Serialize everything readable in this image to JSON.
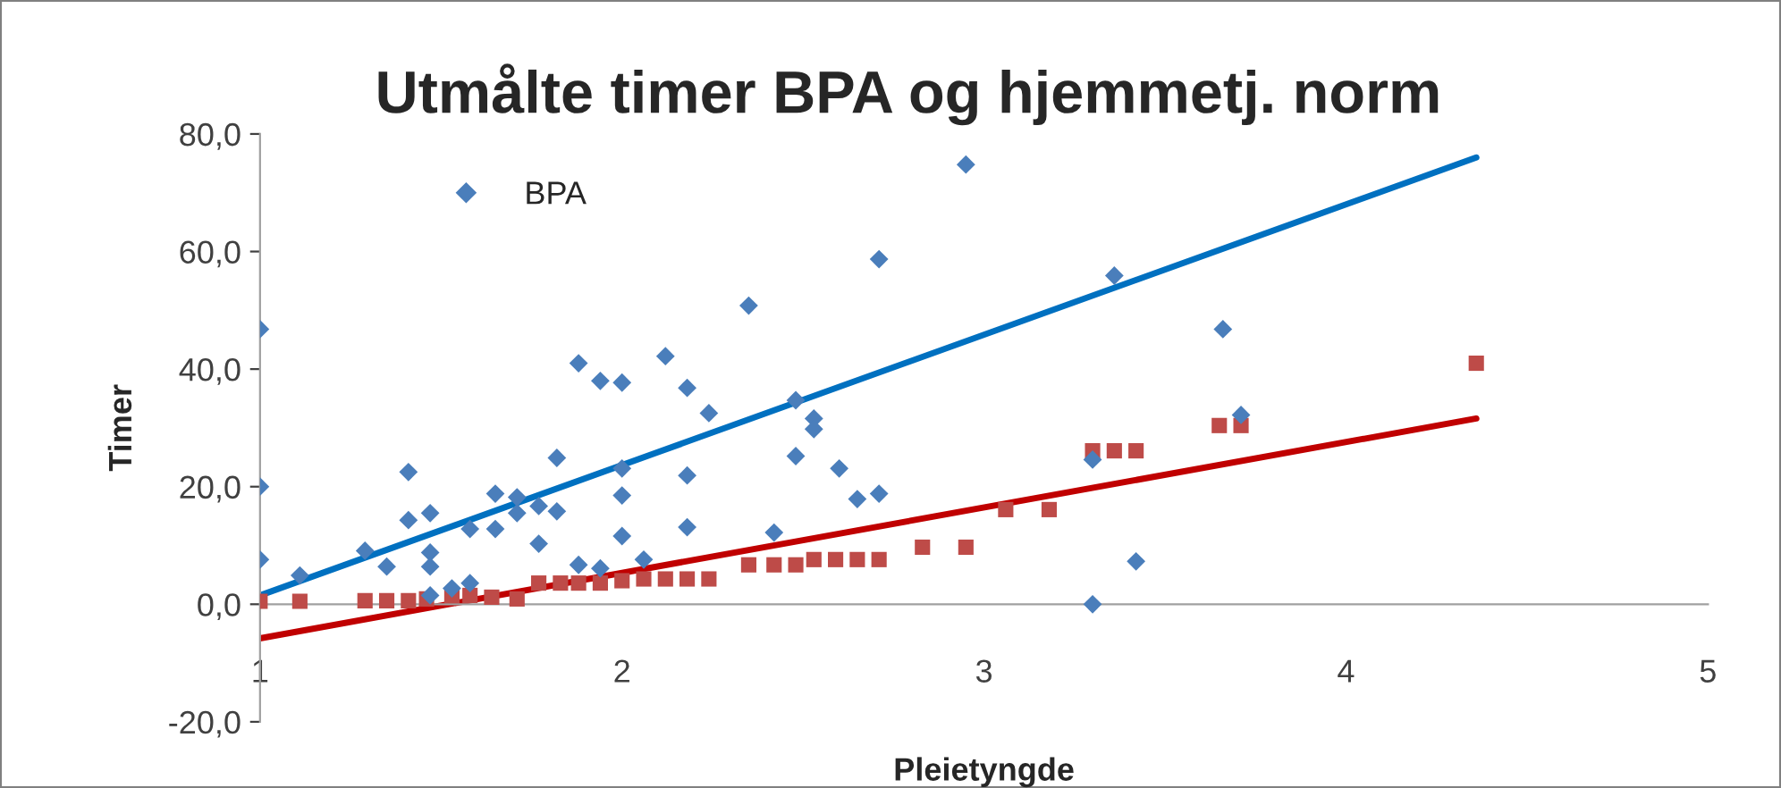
{
  "chart_data": {
    "type": "scatter",
    "title": "Utmålte timer BPA og hjemmetj. norm",
    "xlabel": "Pleietyngde",
    "ylabel": "Timer",
    "xlim": [
      1,
      5
    ],
    "xticks": [
      1,
      2,
      3,
      4,
      5
    ],
    "ylim": [
      -20,
      80
    ],
    "yticks": [
      {
        "value": -20,
        "label": "-20,0"
      },
      {
        "value": 0,
        "label": "0,0"
      },
      {
        "value": 20,
        "label": "20,0"
      },
      {
        "value": 40,
        "label": "40,0"
      },
      {
        "value": 60,
        "label": "60,0"
      },
      {
        "value": 80,
        "label": "80,0"
      }
    ],
    "grid": false,
    "legend": "top left",
    "series": [
      {
        "name": "BPA",
        "marker": "diamond",
        "color": "#4a7ebb",
        "x": [
          1.0,
          1.0,
          1.0,
          1.11,
          1.29,
          1.35,
          1.41,
          1.41,
          1.47,
          1.47,
          1.47,
          1.47,
          1.53,
          1.58,
          1.58,
          1.65,
          1.65,
          1.71,
          1.71,
          1.77,
          1.77,
          1.82,
          1.82,
          1.88,
          1.88,
          1.94,
          1.94,
          2.0,
          2.0,
          2.0,
          2.0,
          2.06,
          2.12,
          2.18,
          2.18,
          2.18,
          2.24,
          2.35,
          2.42,
          2.48,
          2.48,
          2.53,
          2.53,
          2.6,
          2.65,
          2.71,
          2.71,
          2.95,
          3.3,
          3.3,
          3.36,
          3.42,
          3.66,
          3.71
        ],
        "values": [
          46.8,
          20,
          7.6,
          4.9,
          9.1,
          6.4,
          22.5,
          14.3,
          15.5,
          8.8,
          6.4,
          1.5,
          2.7,
          12.8,
          3.6,
          18.8,
          12.8,
          18.2,
          15.5,
          16.7,
          10.3,
          24.9,
          15.8,
          41,
          6.7,
          38,
          6.1,
          37.7,
          23.1,
          18.5,
          11.6,
          7.6,
          42.2,
          36.8,
          21.9,
          13.1,
          32.5,
          50.8,
          12.2,
          25.2,
          34.7,
          31.6,
          29.8,
          23.1,
          17.9,
          18.8,
          58.7,
          74.8,
          24.6,
          0,
          55.9,
          7.3,
          46.8,
          32.2
        ]
      },
      {
        "marker": "square",
        "color": "#be4b48",
        "x": [
          1.0,
          1.11,
          1.29,
          1.35,
          1.41,
          1.46,
          1.53,
          1.58,
          1.64,
          1.71,
          1.77,
          1.83,
          1.88,
          1.94,
          2.0,
          2.06,
          2.12,
          2.18,
          2.24,
          2.35,
          2.42,
          2.48,
          2.53,
          2.59,
          2.65,
          2.71,
          2.83,
          2.95,
          3.06,
          3.18,
          3.3,
          3.36,
          3.42,
          3.65,
          3.71,
          4.36
        ],
        "values": [
          0.5,
          0.5,
          0.6,
          0.6,
          0.6,
          0.9,
          1.5,
          1.5,
          1.2,
          0.9,
          3.6,
          3.6,
          3.6,
          3.6,
          4,
          4.3,
          4.3,
          4.3,
          4.3,
          6.7,
          6.7,
          6.7,
          7.6,
          7.6,
          7.6,
          7.6,
          9.7,
          9.7,
          16.1,
          16.1,
          26.1,
          26.1,
          26.1,
          30.4,
          30.4,
          41
        ]
      },
      {
        "type": "line",
        "marker": "none",
        "line_style": "solid",
        "color": "#0070c0",
        "x": [
          1.0,
          4.36
        ],
        "values": [
          1.5,
          76
        ]
      },
      {
        "type": "line",
        "marker": "none",
        "line_style": "solid",
        "color": "#c00000",
        "x": [
          1.0,
          4.36
        ],
        "values": [
          -5.8,
          31.6
        ]
      }
    ]
  }
}
